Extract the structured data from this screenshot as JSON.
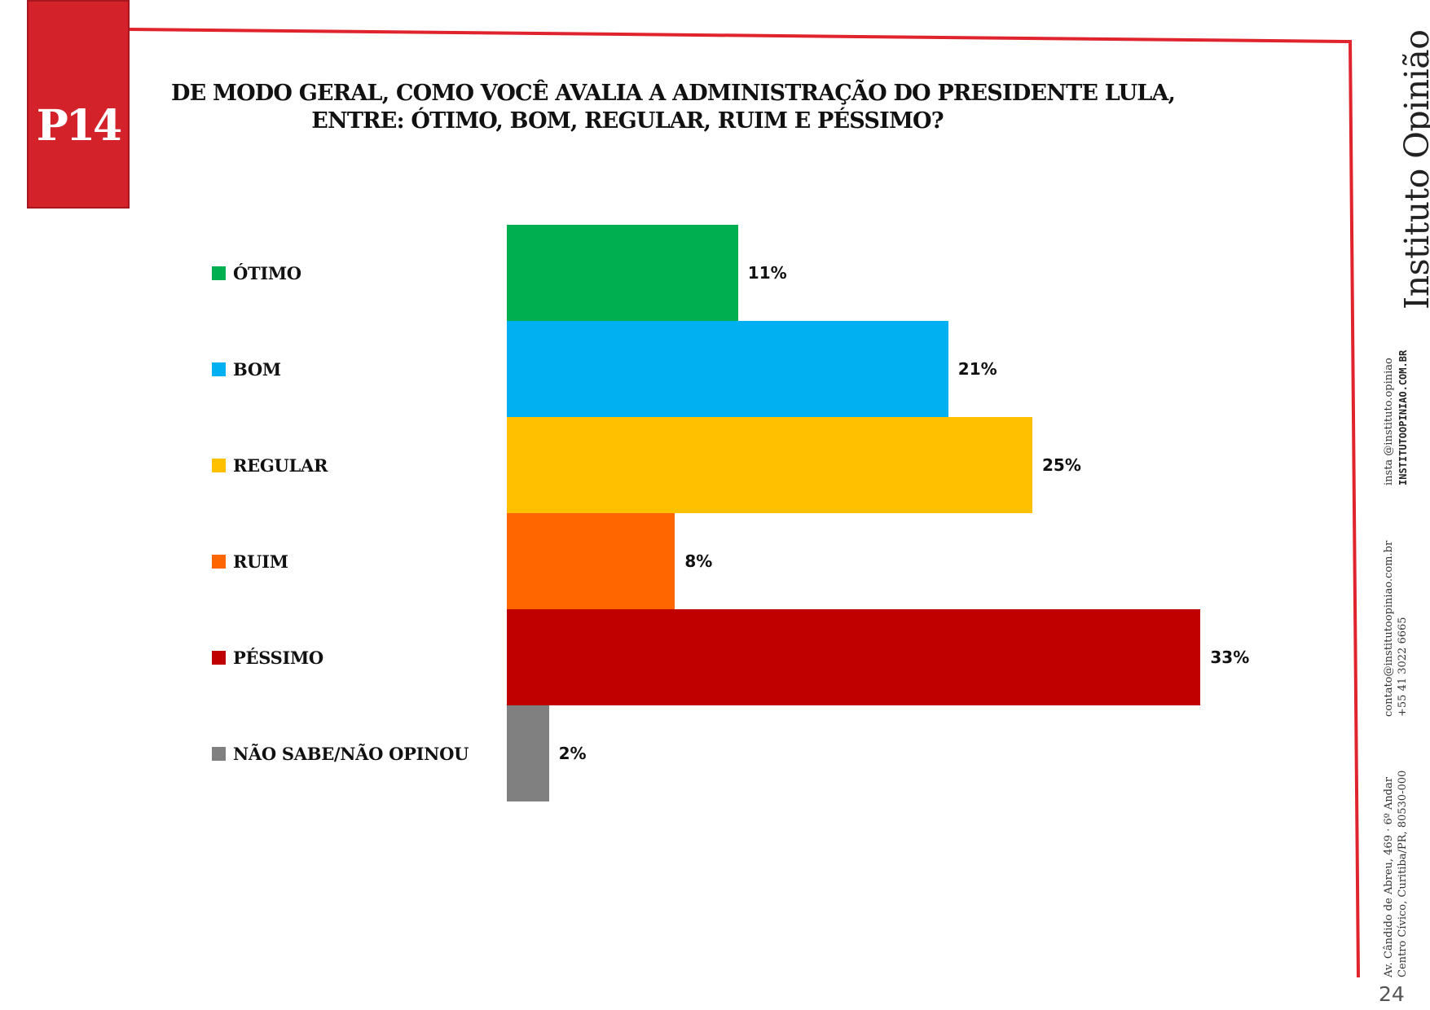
{
  "question_code": "P14",
  "title_lines": [
    "DE MODO GERAL, COMO VOCÊ AVALIA A ADMINISTRAÇÃO DO PRESIDENTE LULA,",
    "ENTRE: ÓTIMO, BOM, REGULAR, RUIM E PÉSSIMO?"
  ],
  "colors": {
    "accent": "#d4222b",
    "frame_line": "#e0242d"
  },
  "chart_data": {
    "type": "bar",
    "orientation": "horizontal",
    "title": "DE MODO GERAL, COMO VOCÊ AVALIA A ADMINISTRAÇÃO DO PRESIDENTE LULA, ENTRE: ÓTIMO, BOM, REGULAR, RUIM E PÉSSIMO?",
    "categories": [
      "ÓTIMO",
      "BOM",
      "REGULAR",
      "RUIM",
      "PÉSSIMO",
      "NÃO SABE/NÃO OPINOU"
    ],
    "values": [
      11,
      21,
      25,
      8,
      33,
      2
    ],
    "value_labels": [
      "11%",
      "21%",
      "25%",
      "8%",
      "33%",
      "2%"
    ],
    "colors": [
      "#00b050",
      "#00b0f0",
      "#ffc000",
      "#ff6600",
      "#c00000",
      "#808080"
    ],
    "unit": "%",
    "legend_position": "left",
    "grid": false
  },
  "brand": {
    "name": "Instituto Opinião",
    "social": "insta @instituto.opiniao",
    "site": "INSTITUTOOPINIAO.COM.BR",
    "email": "contato@institutoopiniao.com.br",
    "phone": "+55 41 3022 6665",
    "address_line1": "Av. Cândido de Abreu, 469 · 6º Andar",
    "address_line2": "Centro Cívico, Curitiba/PR, 80530-000"
  },
  "page_number": "24"
}
